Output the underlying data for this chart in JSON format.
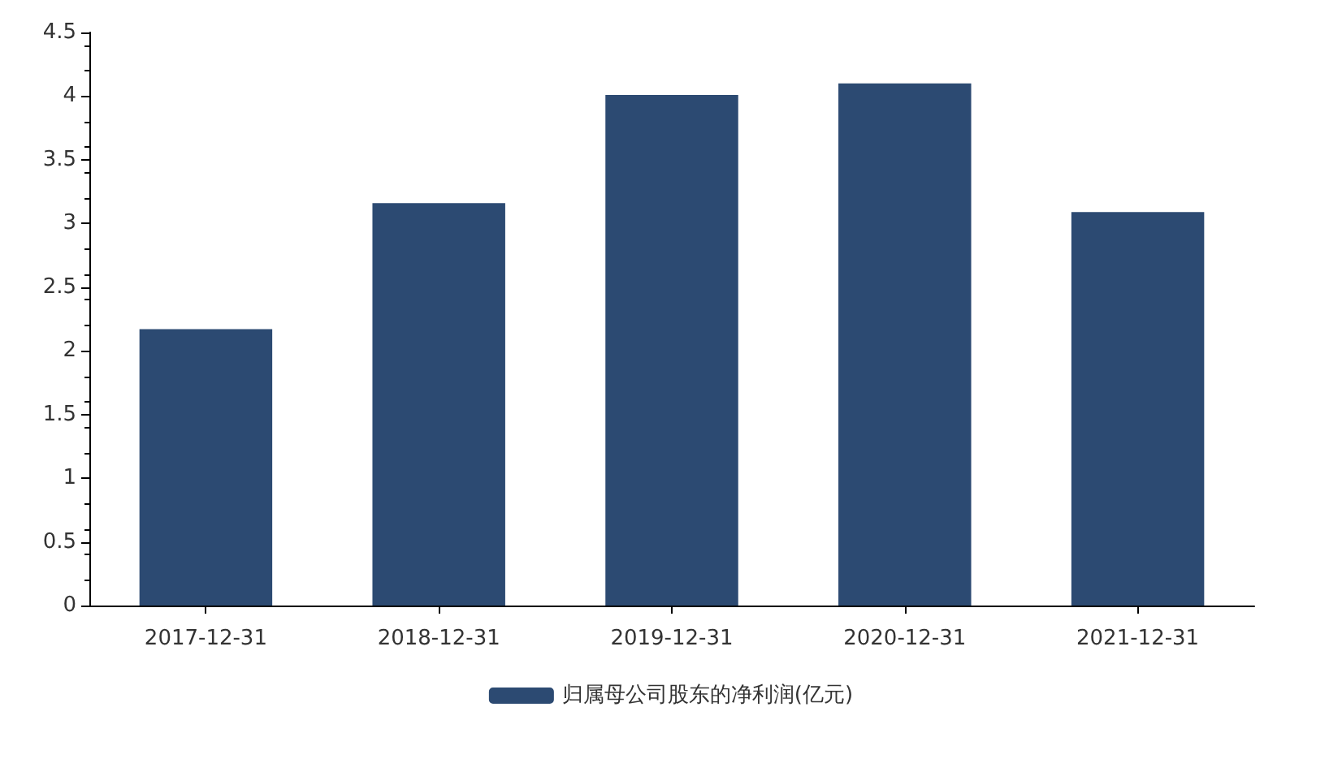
{
  "chart_data": {
    "type": "bar",
    "categories": [
      "2017-12-31",
      "2018-12-31",
      "2019-12-31",
      "2020-12-31",
      "2021-12-31"
    ],
    "series": [
      {
        "name": "归属母公司股东的净利润(亿元)",
        "color": "#2c4a72",
        "values": [
          2.17,
          3.16,
          4.01,
          4.1,
          3.09
        ]
      }
    ],
    "ylim": [
      0,
      4.5
    ],
    "yticks": [
      0,
      0.5,
      1,
      1.5,
      2,
      2.5,
      3,
      3.5,
      4,
      4.5
    ],
    "grid": false,
    "legend": "bottom"
  }
}
